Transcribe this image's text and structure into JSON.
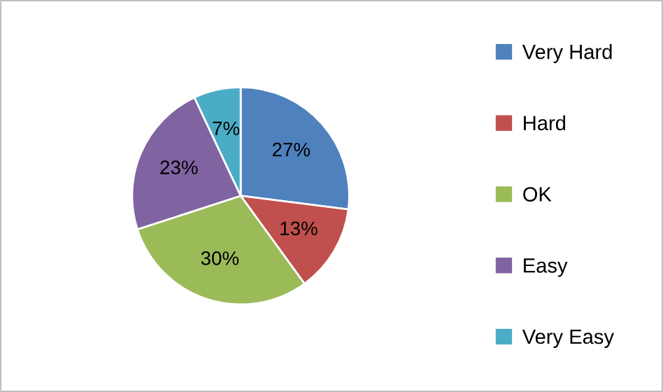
{
  "chart_data": {
    "type": "pie",
    "categories": [
      "Very Hard",
      "Hard",
      "OK",
      "Easy",
      "Very Easy"
    ],
    "values": [
      27,
      13,
      30,
      23,
      7
    ],
    "colors": [
      "#4f81bd",
      "#c0504d",
      "#9bbb59",
      "#8064a2",
      "#4bacc6"
    ],
    "value_labels": [
      "27%",
      "13%",
      "30%",
      "23%",
      "7%"
    ],
    "legend": "right"
  }
}
